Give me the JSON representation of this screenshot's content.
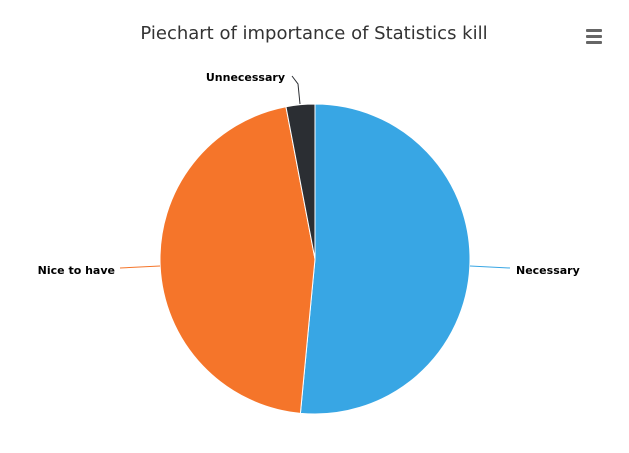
{
  "chart_data": {
    "type": "pie",
    "title": "Piechart of importance of Statistics kill",
    "slices": [
      {
        "label": "Necessary",
        "value": 51.5,
        "color": "#38a6e4"
      },
      {
        "label": "Nice to have",
        "value": 45.5,
        "color": "#f5752a"
      },
      {
        "label": "Unnecessary",
        "value": 3.0,
        "color": "#2b2e33"
      }
    ],
    "legend": "none"
  },
  "menu": {
    "icon": "hamburger-menu-icon"
  }
}
